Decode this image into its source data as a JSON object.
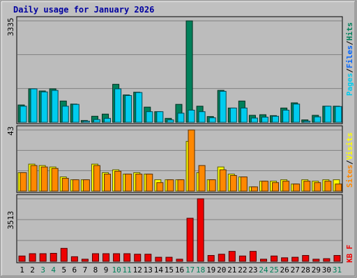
{
  "chart_data": [
    {
      "type": "bar",
      "title": "Daily usage for January 2026",
      "panel": "top",
      "ylabel_max": "3335",
      "legend_words": [
        "Pages",
        "/",
        "Files",
        "/",
        "Hits"
      ],
      "categories": [
        "1",
        "2",
        "3",
        "4",
        "5",
        "6",
        "7",
        "8",
        "9",
        "10",
        "11",
        "12",
        "13",
        "14",
        "15",
        "16",
        "17",
        "18",
        "19",
        "20",
        "21",
        "22",
        "23",
        "24",
        "25",
        "26",
        "27",
        "28",
        "29",
        "30",
        "31"
      ],
      "weekend_days": [
        "3",
        "4",
        "10",
        "11",
        "17",
        "18",
        "24",
        "25",
        "31"
      ],
      "series": [
        {
          "name": "Hits",
          "color": "#00805a",
          "values": [
            570,
            1100,
            1030,
            1100,
            700,
            600,
            60,
            200,
            270,
            1250,
            900,
            990,
            500,
            350,
            130,
            590,
            3335,
            530,
            190,
            1050,
            470,
            700,
            230,
            250,
            220,
            470,
            640,
            80,
            230,
            530,
            530
          ]
        },
        {
          "name": "Files",
          "color": "#00ccee",
          "values": [
            530,
            1100,
            1000,
            1050,
            530,
            590,
            40,
            90,
            130,
            1100,
            880,
            980,
            350,
            350,
            80,
            300,
            400,
            350,
            150,
            1020,
            470,
            470,
            140,
            170,
            200,
            400,
            600,
            40,
            180,
            530,
            520
          ]
        }
      ],
      "ylim": [
        0,
        3335
      ]
    },
    {
      "type": "bar",
      "panel": "middle",
      "ylabel_max": "43",
      "legend_words": [
        "Sites",
        "/",
        "Visits"
      ],
      "series": [
        {
          "name": "Visits",
          "color": "#ffff00",
          "values": [
            13,
            19,
            18,
            17,
            10,
            8,
            8,
            19,
            13,
            15,
            12,
            13,
            12,
            8,
            8,
            8,
            35,
            13,
            8,
            17,
            12,
            10,
            3,
            7,
            7,
            8,
            5,
            8,
            7,
            8,
            8
          ]
        },
        {
          "name": "Sites",
          "color": "#ff8800",
          "values": [
            13,
            18,
            17,
            16,
            9,
            8,
            8,
            18,
            12,
            14,
            12,
            12,
            12,
            6,
            8,
            8,
            43,
            18,
            8,
            15,
            11,
            10,
            3,
            7,
            6,
            7,
            5,
            7,
            6,
            7,
            5
          ]
        }
      ],
      "ylim": [
        0,
        43
      ]
    },
    {
      "type": "bar",
      "panel": "bottom",
      "ylabel_max": "3513",
      "legend_words": [
        "KB",
        "F"
      ],
      "series": [
        {
          "name": "KB F",
          "color": "#ee0000",
          "values": [
            300,
            430,
            430,
            450,
            730,
            260,
            120,
            430,
            430,
            430,
            430,
            400,
            400,
            230,
            230,
            120,
            2420,
            3513,
            330,
            400,
            560,
            300,
            560,
            120,
            300,
            200,
            230,
            330,
            120,
            150,
            330
          ]
        }
      ],
      "ylim": [
        0,
        3513
      ]
    }
  ],
  "colors": {
    "background": "#c0c0c0",
    "plot": "#bcbcbc",
    "title": "#0000a0",
    "weekend_label": "#00805a",
    "weekday_label": "#000000"
  }
}
